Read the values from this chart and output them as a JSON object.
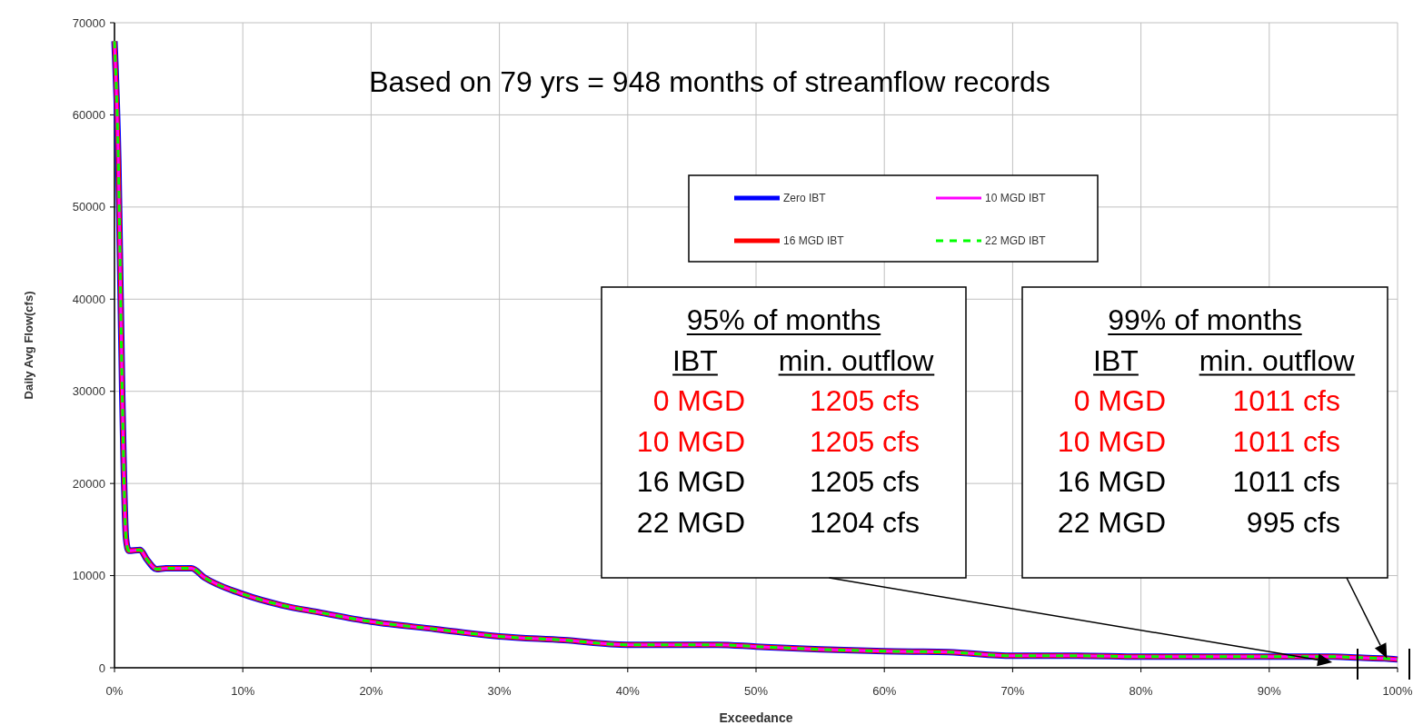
{
  "chart_data": {
    "type": "line",
    "title": "Based on 79 yrs = 948 months of streamflow records",
    "xlabel": "Exceedance",
    "ylabel": "Daily Avg Flow(cfs)",
    "x": [
      0,
      0.3,
      0.6,
      0.9,
      1.1,
      2.0,
      2.5,
      3.3,
      4,
      6,
      7,
      10,
      13,
      16,
      20,
      25,
      30,
      35,
      40,
      47,
      50,
      55,
      60,
      65,
      70,
      75,
      80,
      90,
      95,
      97,
      99,
      100
    ],
    "series": [
      {
        "name": "Zero IBT",
        "color": "#0000ff",
        "line_style": "solid",
        "values": [
          68000,
          55000,
          30000,
          14000,
          12700,
          12800,
          11800,
          10700,
          10800,
          10800,
          9800,
          8000,
          6800,
          6000,
          5000,
          4200,
          3400,
          3000,
          2500,
          2500,
          2300,
          2000,
          1800,
          1700,
          1300,
          1300,
          1200,
          1200,
          1200,
          1100,
          1000,
          900
        ]
      },
      {
        "name": "10 MGD IBT",
        "color": "#ff00ff",
        "line_style": "solid",
        "values": [
          68000,
          55000,
          30000,
          14000,
          12700,
          12800,
          11800,
          10700,
          10800,
          10800,
          9800,
          8000,
          6800,
          6000,
          5000,
          4200,
          3400,
          3000,
          2500,
          2500,
          2300,
          2000,
          1800,
          1700,
          1300,
          1300,
          1200,
          1200,
          1200,
          1100,
          1000,
          900
        ]
      },
      {
        "name": "16 MGD IBT",
        "color": "#ff0000",
        "line_style": "solid",
        "values": [
          68000,
          55000,
          30000,
          14000,
          12700,
          12800,
          11800,
          10700,
          10800,
          10800,
          9800,
          8000,
          6800,
          6000,
          5000,
          4200,
          3400,
          3000,
          2500,
          2500,
          2300,
          2000,
          1800,
          1700,
          1300,
          1300,
          1200,
          1200,
          1200,
          1100,
          1000,
          900
        ]
      },
      {
        "name": "22 MGD IBT",
        "color": "#00ff00",
        "line_style": "dashed",
        "values": [
          68000,
          55000,
          30000,
          14000,
          12700,
          12800,
          11800,
          10700,
          10800,
          10800,
          9800,
          8000,
          6800,
          6000,
          5000,
          4200,
          3400,
          3000,
          2500,
          2500,
          2300,
          2000,
          1800,
          1700,
          1300,
          1300,
          1200,
          1200,
          1200,
          1100,
          1000,
          900
        ]
      }
    ],
    "xlim": [
      0,
      100
    ],
    "xticks": [
      {
        "value": 0,
        "label": "0%"
      },
      {
        "value": 10,
        "label": "10%"
      },
      {
        "value": 20,
        "label": "20%"
      },
      {
        "value": 30,
        "label": "30%"
      },
      {
        "value": 40,
        "label": "40%"
      },
      {
        "value": 50,
        "label": "50%"
      },
      {
        "value": 60,
        "label": "60%"
      },
      {
        "value": 70,
        "label": "70%"
      },
      {
        "value": 80,
        "label": "80%"
      },
      {
        "value": 90,
        "label": "90%"
      },
      {
        "value": 100,
        "label": "100%"
      }
    ],
    "ylim": [
      0,
      70000
    ],
    "yticks": [
      0,
      10000,
      20000,
      30000,
      40000,
      50000,
      60000,
      70000
    ],
    "grid": true,
    "legend": "top",
    "annotations": [
      "95% of months",
      "IBT",
      "min. outflow",
      "0 MGD",
      "1205 cfs",
      "10 MGD",
      "1205 cfs",
      "16 MGD",
      "1205 cfs",
      "22 MGD",
      "1204 cfs",
      "99% of months",
      "IBT",
      "min. outflow",
      "0 MGD",
      "1011 cfs",
      "10 MGD",
      "1011 cfs",
      "16 MGD",
      "1011 cfs",
      "22 MGD",
      "995 cfs"
    ]
  }
}
